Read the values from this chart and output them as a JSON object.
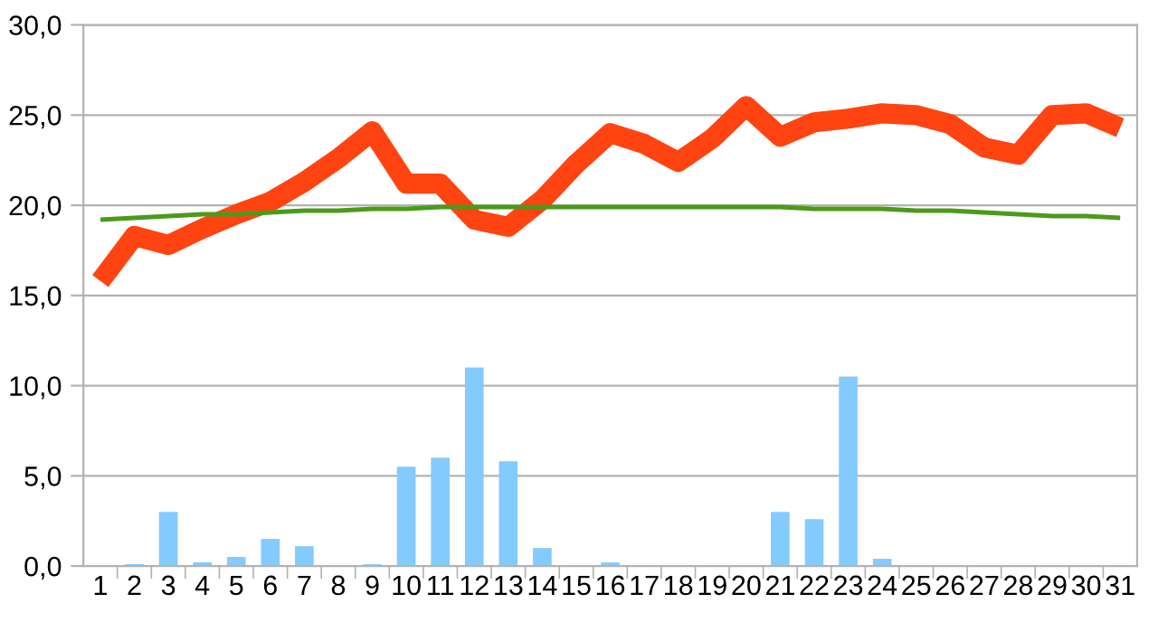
{
  "chart_data": {
    "type": "bar",
    "categories": [
      "1",
      "2",
      "3",
      "4",
      "5",
      "6",
      "7",
      "8",
      "9",
      "10",
      "11",
      "12",
      "13",
      "14",
      "15",
      "16",
      "17",
      "18",
      "19",
      "20",
      "21",
      "22",
      "23",
      "24",
      "25",
      "26",
      "27",
      "28",
      "29",
      "30",
      "31"
    ],
    "series": [
      {
        "color": "#83caff",
        "values": [
          0,
          0.1,
          3.0,
          0.2,
          0.5,
          1.5,
          1.1,
          0,
          0.1,
          5.5,
          6.0,
          11.0,
          5.8,
          1.0,
          0,
          0.2,
          0,
          0,
          0,
          0,
          3.0,
          2.6,
          10.5,
          0.4,
          0,
          0,
          0,
          0,
          0,
          0,
          0
        ]
      },
      {
        "type": "line",
        "color": "#ff4411",
        "values": [
          15.8,
          18.3,
          17.8,
          18.7,
          19.5,
          20.2,
          21.3,
          22.6,
          24.1,
          21.2,
          21.2,
          19.2,
          18.8,
          20.3,
          22.3,
          24.0,
          23.4,
          22.4,
          23.7,
          25.5,
          23.8,
          24.6,
          24.8,
          25.1,
          25.0,
          24.5,
          23.2,
          22.8,
          25.0,
          25.1,
          24.3
        ]
      },
      {
        "type": "line",
        "color": "#4c9a1a",
        "values": [
          19.2,
          19.3,
          19.4,
          19.5,
          19.5,
          19.6,
          19.7,
          19.7,
          19.8,
          19.8,
          19.9,
          19.9,
          19.9,
          19.9,
          19.9,
          19.9,
          19.9,
          19.9,
          19.9,
          19.9,
          19.9,
          19.8,
          19.8,
          19.8,
          19.7,
          19.7,
          19.6,
          19.5,
          19.4,
          19.4,
          19.3
        ]
      }
    ],
    "ylim": [
      0,
      30
    ],
    "yticks": [
      {
        "value": 0,
        "label": "0,0"
      },
      {
        "value": 5,
        "label": "5,0"
      },
      {
        "value": 10,
        "label": "10,0"
      },
      {
        "value": 15,
        "label": "15,0"
      },
      {
        "value": 20,
        "label": "20,0"
      },
      {
        "value": 25,
        "label": "25,0"
      },
      {
        "value": 30,
        "label": "30,0"
      }
    ],
    "grid": "y",
    "legend": false
  }
}
